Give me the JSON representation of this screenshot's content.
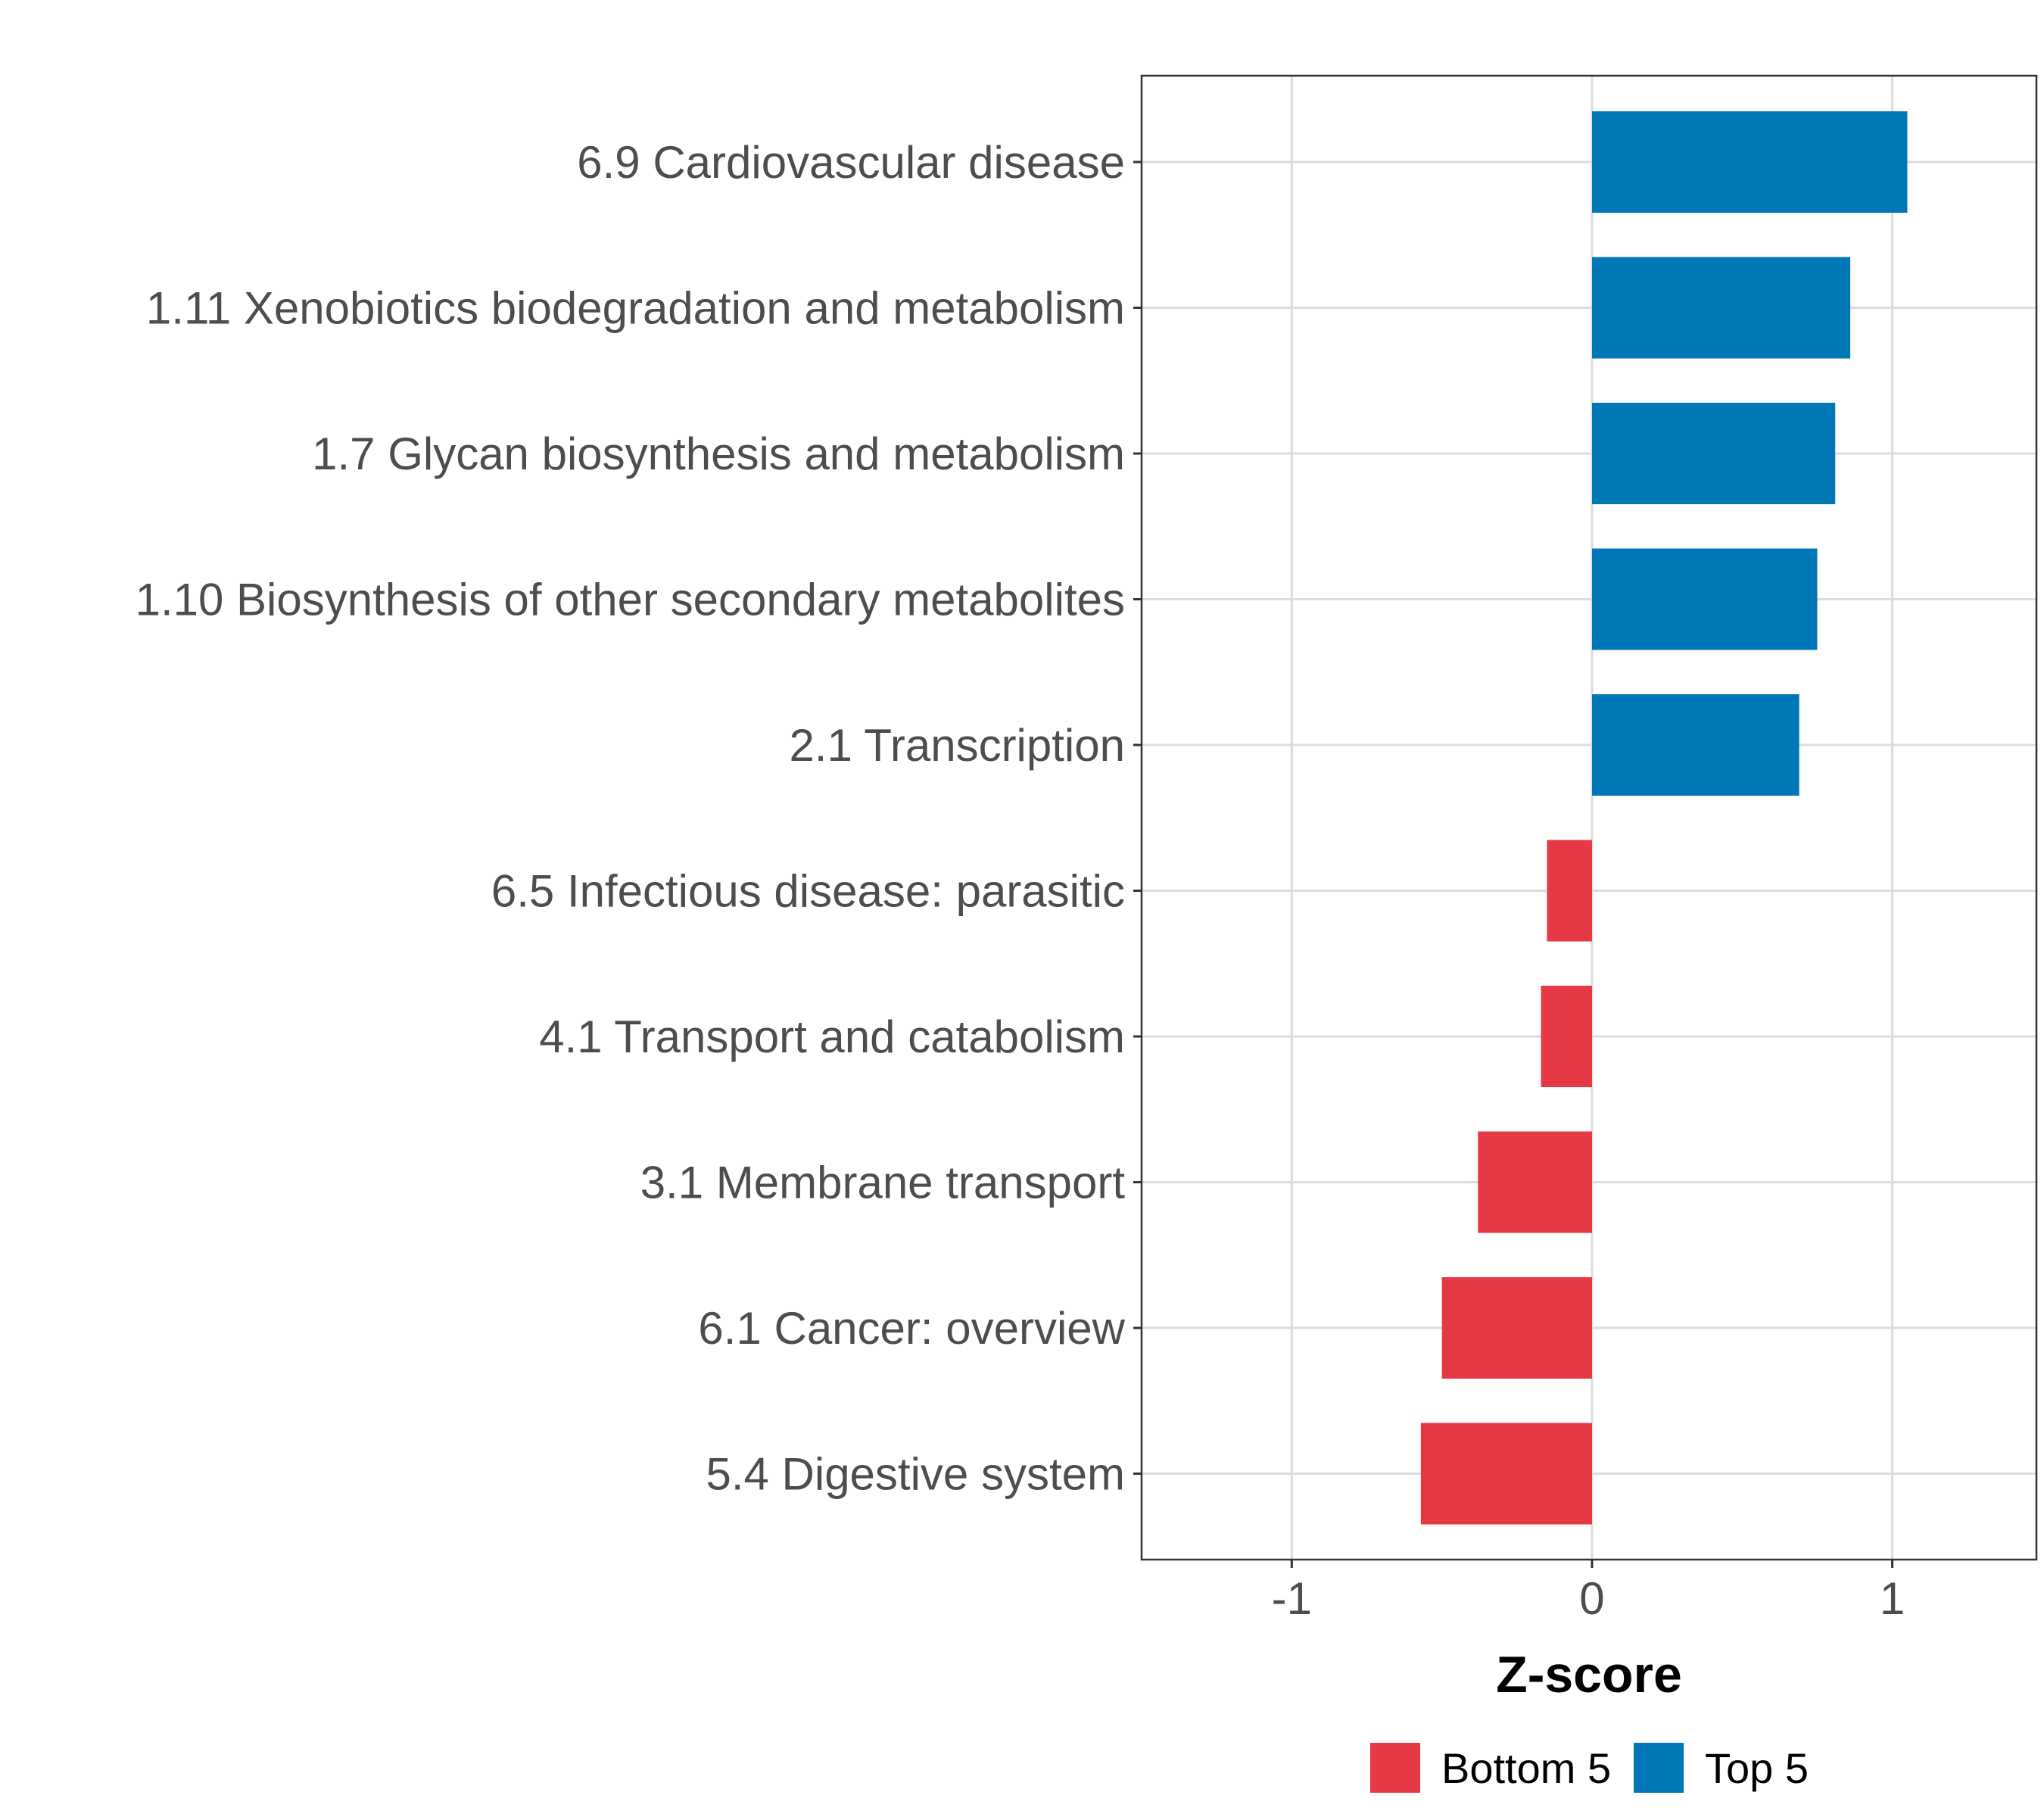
{
  "chart_data": {
    "type": "bar",
    "orientation": "horizontal",
    "title": "",
    "xlabel": "Z-score",
    "ylabel": "",
    "xlim": [
      -1.5,
      1.48
    ],
    "xticks": [
      -1,
      0,
      1
    ],
    "xtick_labels": [
      "-1",
      "0",
      "1"
    ],
    "grid": true,
    "legend_position": "bottom",
    "legend": [
      {
        "name": "Bottom 5",
        "color": "#E63946"
      },
      {
        "name": "Top 5",
        "color": "#0077B6"
      }
    ],
    "categories": [
      "6.9 Cardiovascular disease",
      "1.11 Xenobiotics biodegradation and metabolism",
      "1.7 Glycan biosynthesis and metabolism",
      "1.10 Biosynthesis of other secondary metabolites",
      "2.1 Transcription",
      "6.5 Infectious disease: parasitic",
      "4.1 Transport and catabolism",
      "3.1 Membrane transport",
      "6.1 Cancer: overview",
      "5.4 Digestive system"
    ],
    "values": [
      1.05,
      0.86,
      0.81,
      0.75,
      0.69,
      -0.15,
      -0.17,
      -0.38,
      -0.5,
      -0.57
    ],
    "groups": [
      "Top 5",
      "Top 5",
      "Top 5",
      "Top 5",
      "Top 5",
      "Bottom 5",
      "Bottom 5",
      "Bottom 5",
      "Bottom 5",
      "Bottom 5"
    ]
  }
}
